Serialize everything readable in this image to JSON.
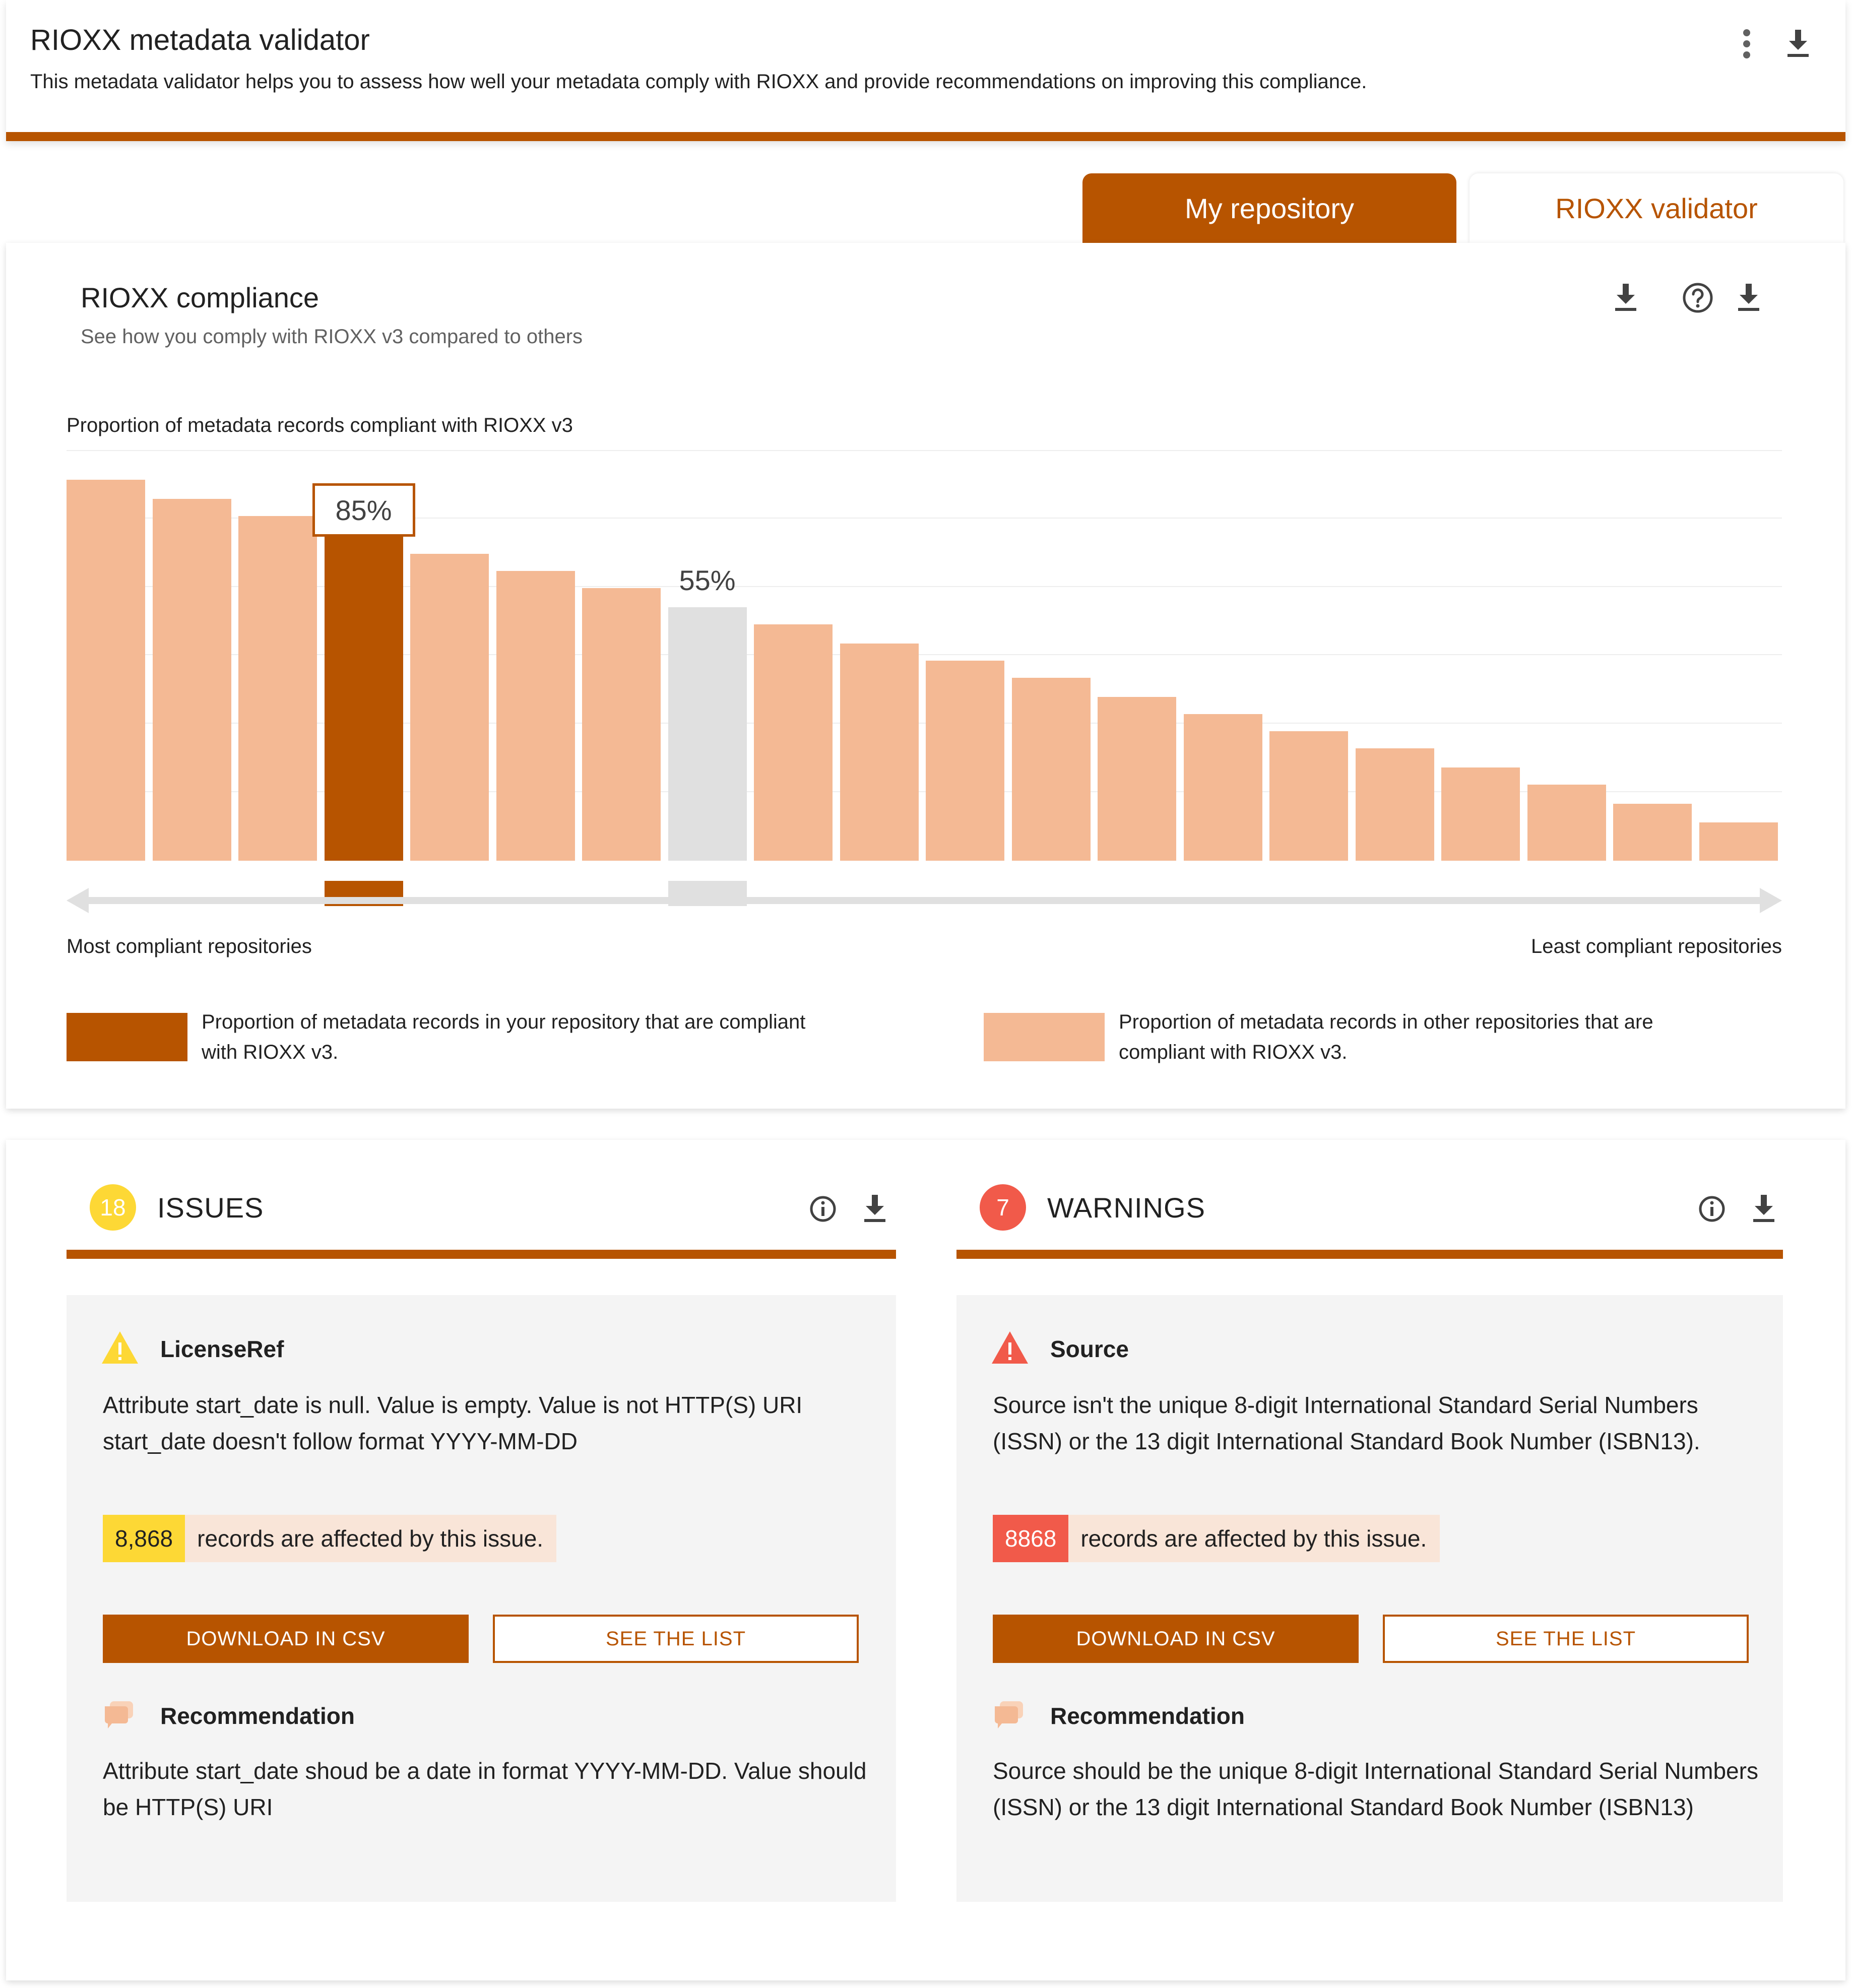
{
  "header": {
    "title": "RIOXX metadata validator",
    "description": "This metadata validator helps you to assess how well your metadata comply with RIOXX and provide recommendations on improving this compliance.",
    "more_icon": "more-vertical-icon",
    "download_icon": "download-icon"
  },
  "tabs": [
    {
      "label": "My repository",
      "active": true
    },
    {
      "label": "RIOXX validator",
      "active": false
    }
  ],
  "compliance": {
    "title": "RIOXX compliance",
    "subtitle": "See how you comply with RIOXX v3 compared to others",
    "icons": [
      "download-icon",
      "help-icon",
      "download-icon"
    ]
  },
  "chart_data": {
    "type": "bar",
    "title": "Proportion of metadata records compliant with RIOXX v3",
    "values": [
      100,
      95,
      90.5,
      85,
      80.5,
      76,
      71.5,
      66.5,
      62,
      57,
      52.5,
      48,
      43,
      38.5,
      34,
      29.5,
      24.5,
      20,
      15,
      10
    ],
    "highlight_index": 3,
    "highlight_label": "85%",
    "average_index": 7,
    "average_label": "55%",
    "xlabel_left": "Most compliant repositories",
    "xlabel_right": "Least compliant repositories",
    "grid": true,
    "colors": {
      "mine": "#b75400",
      "others": "#f4b994",
      "average": "#e0e0e0"
    },
    "legend": [
      {
        "label": "Proportion of metadata records in your repository that are compliant with RIOXX v3.",
        "color": "#b75400"
      },
      {
        "label": "Proportion of metadata records in other repositories that are compliant with RIOXX v3.",
        "color": "#f4b994"
      }
    ]
  },
  "issues": {
    "count": "18",
    "title": "ISSUES",
    "badge_color": "#fdd835",
    "item": {
      "name": "LicenseRef",
      "text": "Attribute start_date is null. Value is empty. Value is not HTTP(S) URI start_date doesn't follow format YYYY-MM-DD",
      "affected_count": "8,868",
      "affected_text": "records are affected by this issue.",
      "download_label": "DOWNLOAD IN CSV",
      "list_label": "SEE THE LIST",
      "recommendation_title": "Recommendation",
      "recommendation_text": "Attribute start_date shoud be a date in format YYYY-MM-DD. Value should be HTTP(S) URI"
    }
  },
  "warnings": {
    "count": "7",
    "title": "WARNINGS",
    "badge_color": "#f15a4a",
    "item": {
      "name": "Source",
      "text": "Source isn't the unique 8-digit International Standard Serial Numbers (ISSN) or the 13 digit International Standard Book Number (ISBN13).",
      "affected_count": "8868",
      "affected_text": "records are affected by this issue.",
      "download_label": "DOWNLOAD IN CSV",
      "list_label": "SEE THE LIST",
      "recommendation_title": "Recommendation",
      "recommendation_text": "Source should be the unique 8-digit International Standard Serial Numbers (ISSN) or the 13 digit International Standard Book Number (ISBN13)"
    }
  }
}
